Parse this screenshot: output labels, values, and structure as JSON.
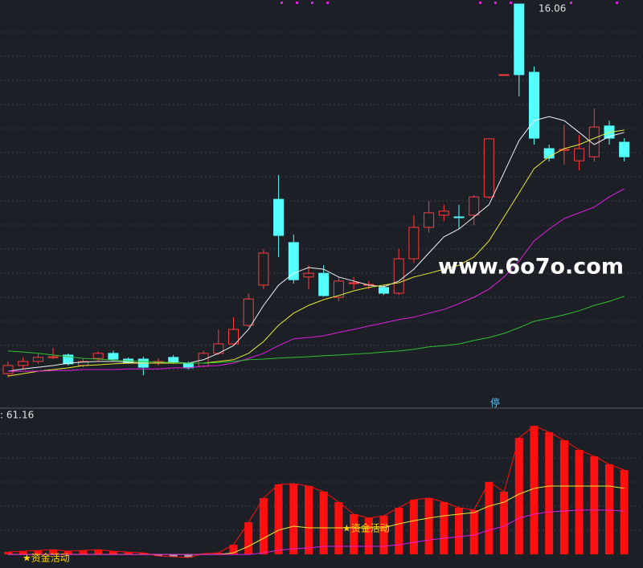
{
  "chart_data": [
    {
      "type": "candlestick",
      "open": [
        5.12,
        5.36,
        5.48,
        5.6,
        5.67,
        5.36,
        5.57,
        5.72,
        5.55,
        5.55,
        5.46,
        5.6,
        5.43,
        5.34,
        5.72,
        6.0,
        6.55,
        7.74,
        10.28,
        9.0,
        7.98,
        8.09,
        7.38,
        7.79,
        7.74,
        7.67,
        7.5,
        8.52,
        9.45,
        9.81,
        9.76,
        9.81,
        10.35,
        13.97,
        16.06,
        14.04,
        11.78,
        11.73,
        11.42,
        11.54,
        12.45,
        11.97
      ],
      "high": [
        5.48,
        5.6,
        5.72,
        5.88,
        5.72,
        5.55,
        5.78,
        5.8,
        5.6,
        5.62,
        5.57,
        5.67,
        5.48,
        5.8,
        6.43,
        6.79,
        7.5,
        8.81,
        11.0,
        9.24,
        8.33,
        8.33,
        7.98,
        7.98,
        7.86,
        7.74,
        8.81,
        9.81,
        10.23,
        10.12,
        10.12,
        10.4,
        12.07,
        13.97,
        16.06,
        14.21,
        11.9,
        12.49,
        12.18,
        12.97,
        12.61,
        12.09
      ],
      "low": [
        5.0,
        5.24,
        5.41,
        5.55,
        5.36,
        5.31,
        5.5,
        5.5,
        5.41,
        5.07,
        5.36,
        5.41,
        5.24,
        5.31,
        5.67,
        5.95,
        6.5,
        7.62,
        8.57,
        7.79,
        7.62,
        7.4,
        7.26,
        7.62,
        7.62,
        7.45,
        7.45,
        8.4,
        9.3,
        9.64,
        9.4,
        9.52,
        10.3,
        13.97,
        13.33,
        11.9,
        11.4,
        11.31,
        11.14,
        11.4,
        11.9,
        11.4
      ],
      "close": [
        5.36,
        5.48,
        5.6,
        5.62,
        5.41,
        5.48,
        5.72,
        5.55,
        5.43,
        5.31,
        5.48,
        5.43,
        5.29,
        5.72,
        6.0,
        6.43,
        7.33,
        8.69,
        9.21,
        7.9,
        8.09,
        7.43,
        7.86,
        7.81,
        7.76,
        7.5,
        8.52,
        9.45,
        9.88,
        9.93,
        9.74,
        10.35,
        12.07,
        13.97,
        13.97,
        12.09,
        11.5,
        11.76,
        11.78,
        12.42,
        12.09,
        11.54
      ],
      "up_color": "#ff3c3c",
      "down_color": "#54ffff",
      "ylim": [
        4.17,
        16.18
      ],
      "lines": [
        {
          "color": "#f0f0f0",
          "values": [
            5.19,
            5.26,
            5.31,
            5.36,
            5.43,
            5.46,
            5.48,
            5.48,
            5.46,
            5.43,
            5.43,
            5.46,
            5.43,
            5.53,
            5.72,
            5.95,
            6.43,
            7.14,
            7.74,
            8.09,
            8.26,
            8.21,
            7.98,
            7.86,
            7.74,
            7.69,
            7.86,
            8.21,
            8.69,
            9.17,
            9.4,
            9.76,
            10.12,
            11.07,
            12.02,
            12.61,
            12.73,
            12.61,
            12.26,
            11.9,
            12.14,
            12.26
          ]
        },
        {
          "color": "#e8e830",
          "values": [
            5.05,
            5.12,
            5.19,
            5.24,
            5.29,
            5.36,
            5.38,
            5.41,
            5.43,
            5.43,
            5.43,
            5.43,
            5.43,
            5.43,
            5.48,
            5.53,
            5.72,
            6.07,
            6.55,
            6.91,
            7.14,
            7.31,
            7.43,
            7.57,
            7.67,
            7.74,
            7.81,
            7.98,
            8.09,
            8.21,
            8.33,
            8.57,
            9.05,
            9.76,
            10.47,
            11.19,
            11.54,
            11.78,
            11.9,
            12.09,
            12.26,
            12.33
          ]
        },
        {
          "color": "#e020e0",
          "values": [
            5.19,
            5.19,
            5.19,
            5.21,
            5.21,
            5.24,
            5.24,
            5.24,
            5.26,
            5.26,
            5.26,
            5.29,
            5.29,
            5.34,
            5.36,
            5.43,
            5.57,
            5.72,
            5.95,
            6.15,
            6.19,
            6.24,
            6.34,
            6.43,
            6.53,
            6.62,
            6.72,
            6.79,
            6.91,
            7.02,
            7.19,
            7.38,
            7.62,
            7.98,
            8.45,
            9.05,
            9.4,
            9.71,
            9.88,
            10.05,
            10.35,
            10.59
          ]
        },
        {
          "color": "#30c030",
          "values": [
            5.79,
            5.76,
            5.72,
            5.67,
            5.62,
            5.57,
            5.55,
            5.52,
            5.5,
            5.48,
            5.46,
            5.45,
            5.43,
            5.43,
            5.45,
            5.48,
            5.53,
            5.55,
            5.58,
            5.6,
            5.62,
            5.65,
            5.67,
            5.7,
            5.72,
            5.76,
            5.79,
            5.84,
            5.91,
            5.95,
            6.0,
            6.1,
            6.19,
            6.31,
            6.48,
            6.67,
            6.76,
            6.86,
            6.98,
            7.14,
            7.26,
            7.41
          ]
        }
      ]
    },
    {
      "type": "bar",
      "values": [
        1.5,
        2,
        2.5,
        3,
        2,
        2.5,
        3,
        2,
        1.5,
        1,
        -1,
        -1.5,
        -2,
        0.5,
        1,
        6.1,
        20.3,
        35.6,
        44.2,
        44.7,
        43.2,
        39.6,
        33.0,
        25.4,
        22.9,
        24.4,
        29.5,
        34.5,
        35.6,
        33.0,
        29.5,
        28.0,
        45.7,
        39.6,
        73.6,
        81.2,
        77.2,
        72.1,
        66.0,
        62.0,
        56.9,
        53.3
      ],
      "up_color": "#ff1010",
      "down_color": "#a0a0a0",
      "ylim": [
        -8.6,
        91.4
      ],
      "lines": [
        {
          "color": "#e8e830",
          "values": [
            0,
            0,
            0,
            0,
            0,
            0,
            0,
            0,
            0,
            0,
            0,
            0,
            0,
            0,
            0,
            1.0,
            5.1,
            10.2,
            15.3,
            17.8,
            16.8,
            16.8,
            16.8,
            16.8,
            16.8,
            16.8,
            19.3,
            21.3,
            22.9,
            24.4,
            25.4,
            26.4,
            30.5,
            33.0,
            38.1,
            41.7,
            43.2,
            43.2,
            43.2,
            43.2,
            43.2,
            41.7
          ]
        },
        {
          "color": "#e020e0",
          "values": [
            0,
            0,
            0,
            0,
            0,
            0,
            0,
            0,
            0,
            0,
            0,
            0,
            0,
            0,
            0,
            0,
            0,
            1.0,
            2.6,
            3.6,
            4.1,
            5.1,
            5.1,
            5.1,
            5.1,
            5.1,
            6.1,
            7.6,
            9.1,
            10.2,
            11.2,
            12.2,
            15.3,
            17.8,
            22.9,
            25.4,
            26.9,
            27.4,
            28.0,
            28.0,
            28.0,
            27.4
          ]
        }
      ]
    }
  ],
  "annotations": {
    "watermark": "www.6o7o.com",
    "halt": "停",
    "indicator": ": 61.16",
    "signal_1": "★资金活动",
    "signal_2": "★资金活动"
  }
}
